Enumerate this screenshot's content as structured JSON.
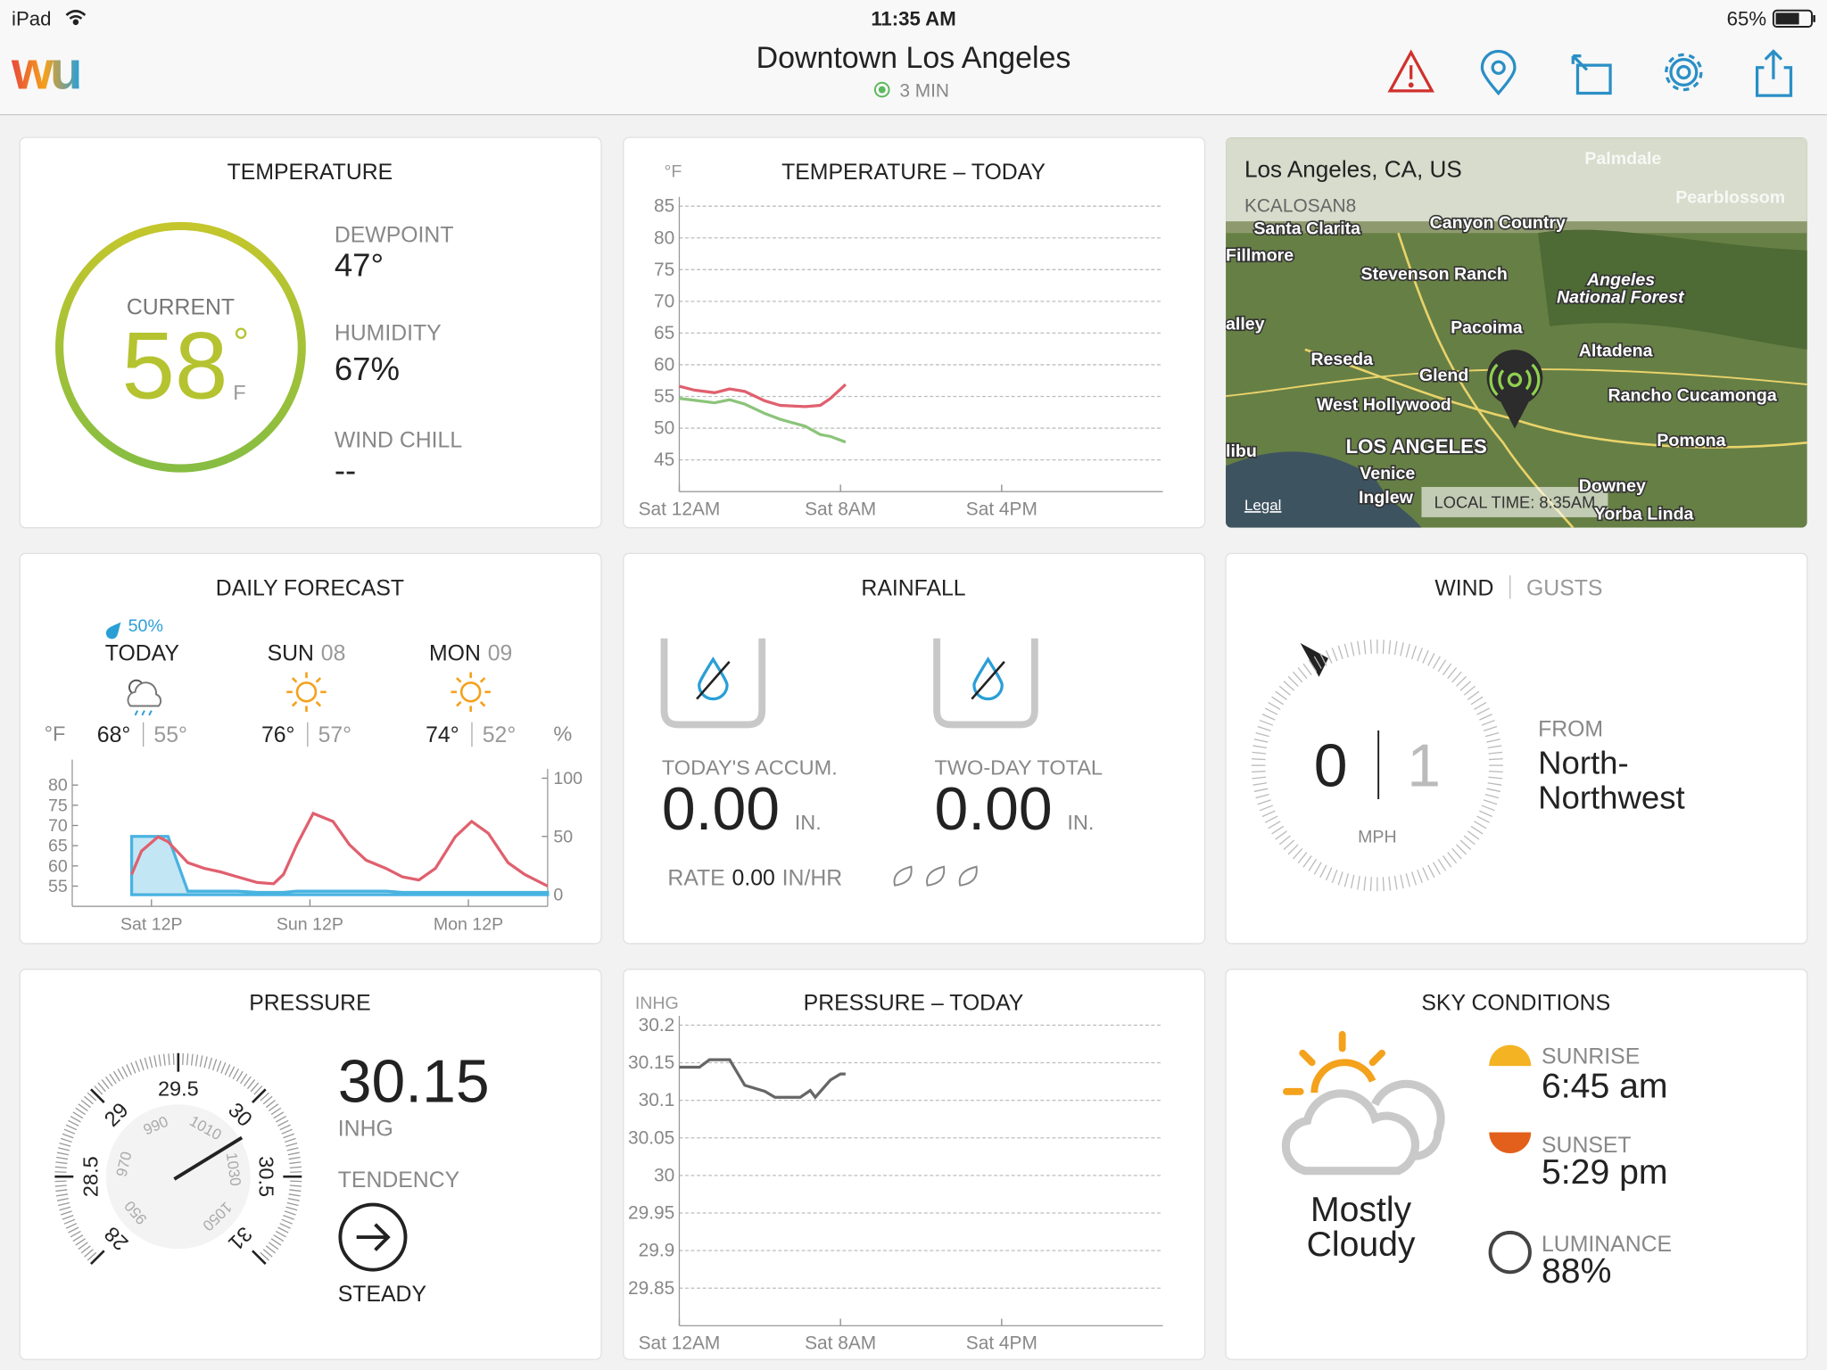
{
  "status_bar": {
    "device": "iPad",
    "time": "11:35 AM",
    "battery": "65%"
  },
  "header": {
    "logo": "wu",
    "location": "Downtown Los Angeles",
    "updated": "3 MIN"
  },
  "temperature": {
    "title": "TEMPERATURE",
    "current_label": "CURRENT",
    "current": 58,
    "degree": "°",
    "unit": "F",
    "dewpoint_label": "DEWPOINT",
    "dewpoint": "47°",
    "humidity_label": "HUMIDITY",
    "humidity": "67%",
    "wind_chill_label": "WIND CHILL",
    "wind_chill": "--"
  },
  "map": {
    "station": "Los Angeles, CA, US",
    "station_id": "KCALOSAN8",
    "legal": "Legal",
    "local_time": "LOCAL TIME: 8:35AM",
    "places": [
      "Palmdale",
      "Pearblossom",
      "Santa Clarita",
      "Canyon Country",
      "Fillmore",
      "Stevenson Ranch",
      "Angeles",
      "National Forest",
      "alley",
      "Pacoima",
      "Altadena",
      "Reseda",
      "Glend",
      "West Hollywood",
      "Rancho Cucamonga",
      "LOS ANGELES",
      "Pomona",
      "libu",
      "Venice",
      "Inglew",
      "Downey",
      "Yorba Linda"
    ]
  },
  "daily_forecast": {
    "title": "DAILY FORECAST",
    "precip_chance": "50%",
    "temp_unit": "°F",
    "precip_unit": "%",
    "days": [
      {
        "name": "TODAY",
        "high": "68°",
        "low": "55°"
      },
      {
        "name": "SUN",
        "date": "08",
        "high": "76°",
        "low": "57°"
      },
      {
        "name": "MON",
        "date": "09",
        "high": "74°",
        "low": "52°"
      }
    ]
  },
  "rainfall": {
    "title": "RAINFALL",
    "today_label": "TODAY'S ACCUM.",
    "today": "0.00",
    "today_unit": "IN.",
    "two_day_label": "TWO-DAY TOTAL",
    "two_day": "0.00",
    "two_day_unit": "IN.",
    "rate_label": "RATE",
    "rate": "0.00",
    "rate_unit": "IN/HR"
  },
  "wind": {
    "title": "WIND",
    "gusts_label": "GUSTS",
    "speed": 0,
    "gusts": 1,
    "unit": "MPH",
    "from_label": "FROM",
    "direction": [
      "North-",
      "Northwest"
    ]
  },
  "pressure": {
    "title": "PRESSURE",
    "value": 30.15,
    "unit": "INHG",
    "tendency_label": "TENDENCY",
    "tendency": "STEADY",
    "gauge_inhg": [
      28,
      28.5,
      29,
      29.5,
      30,
      30.5,
      31
    ],
    "gauge_mb": [
      950,
      970,
      990,
      1010,
      1030,
      1050
    ]
  },
  "sky": {
    "title": "SKY CONDITIONS",
    "condition": [
      "Mostly",
      "Cloudy"
    ],
    "sunrise_label": "SUNRISE",
    "sunrise": "6:45 am",
    "sunset_label": "SUNSET",
    "sunset": "5:29 pm",
    "luminance_label": "LUMINANCE",
    "luminance": "88%"
  },
  "chart_data": [
    {
      "type": "line",
      "title": "TEMPERATURE – TODAY",
      "y_label": "°F",
      "x": [
        0,
        0.75,
        1.75,
        2.5,
        3.25,
        4.25,
        5,
        6.25,
        7,
        7.5,
        8.25
      ],
      "xlim": [
        0,
        24
      ],
      "xticks": [
        {
          "value": 0,
          "label": "Sat 12AM"
        },
        {
          "value": 8,
          "label": "Sat 8AM"
        },
        {
          "value": 16,
          "label": "Sat 4PM"
        }
      ],
      "ylim": [
        40,
        85
      ],
      "yticks": [
        45,
        50,
        55,
        60,
        65,
        70,
        75,
        80,
        85
      ],
      "grid": true,
      "series": [
        {
          "color": "#e0606e",
          "values": [
            56.6,
            56.0,
            55.6,
            56.2,
            55.8,
            54.3,
            53.6,
            53.4,
            53.6,
            54.7,
            56.9
          ]
        },
        {
          "color": "#8cc47a",
          "values": [
            54.7,
            54.4,
            54.0,
            54.5,
            53.8,
            52.3,
            51.4,
            50.3,
            49.0,
            48.7,
            47.8
          ]
        }
      ]
    },
    {
      "type": "line",
      "x": [
        9,
        10.5,
        13,
        14.5,
        17.5,
        20,
        22.5,
        25,
        28,
        30.5,
        32,
        34,
        36.5,
        39.5,
        42,
        44.5,
        47.5,
        50,
        52.5,
        55,
        58,
        60.5,
        63,
        66,
        68.5,
        72
      ],
      "xlim": [
        0,
        72
      ],
      "xticks": [
        {
          "value": 12,
          "label": "Sat 12P"
        },
        {
          "value": 36,
          "label": "Sun 12P"
        },
        {
          "value": 60,
          "label": "Mon 12P"
        }
      ],
      "ylim": [
        50,
        84
      ],
      "yticks": [
        55,
        60,
        65,
        70,
        75,
        80
      ],
      "y2lim": [
        -10,
        108
      ],
      "y2ticks": [
        0,
        50,
        100
      ],
      "grid": false,
      "series": [
        {
          "axis": "y2",
          "color": "#49b3e0",
          "fill": "#c3e6f5",
          "values": [
            50,
            50,
            50,
            50,
            3,
            3,
            3,
            3,
            2,
            2,
            2,
            3,
            3,
            3,
            3,
            3,
            3,
            2,
            2,
            2,
            2,
            2,
            2,
            2,
            2,
            2
          ]
        },
        {
          "color": "#e0606e",
          "values": [
            57.9,
            63.7,
            67.2,
            66,
            60.8,
            59.4,
            58.5,
            57.3,
            55.9,
            55.6,
            57.9,
            65.2,
            73,
            71,
            65.2,
            61.4,
            59.4,
            57.3,
            56.5,
            59.4,
            67.2,
            71,
            68.1,
            60.8,
            57.9,
            55
          ]
        }
      ]
    },
    {
      "type": "line",
      "title": "PRESSURE – TODAY",
      "y_label": "INHG",
      "x": [
        0,
        1,
        1.5,
        2.5,
        3.25,
        4.25,
        4.75,
        6,
        6.5,
        6.75,
        7.5,
        8,
        8.25
      ],
      "xlim": [
        0,
        24
      ],
      "xticks": [
        {
          "value": 0,
          "label": "Sat 12AM"
        },
        {
          "value": 8,
          "label": "Sat 8AM"
        },
        {
          "value": 16,
          "label": "Sat 4PM"
        }
      ],
      "ylim": [
        29.8,
        30.2
      ],
      "yticks": [
        29.85,
        29.9,
        29.95,
        30,
        30.05,
        30.1,
        30.15,
        30.2
      ],
      "grid": true,
      "series": [
        {
          "color": "#666666",
          "values": [
            30.144,
            30.144,
            30.154,
            30.154,
            30.12,
            30.112,
            30.104,
            30.104,
            30.113,
            30.104,
            30.127,
            30.135,
            30.135
          ]
        }
      ]
    }
  ]
}
